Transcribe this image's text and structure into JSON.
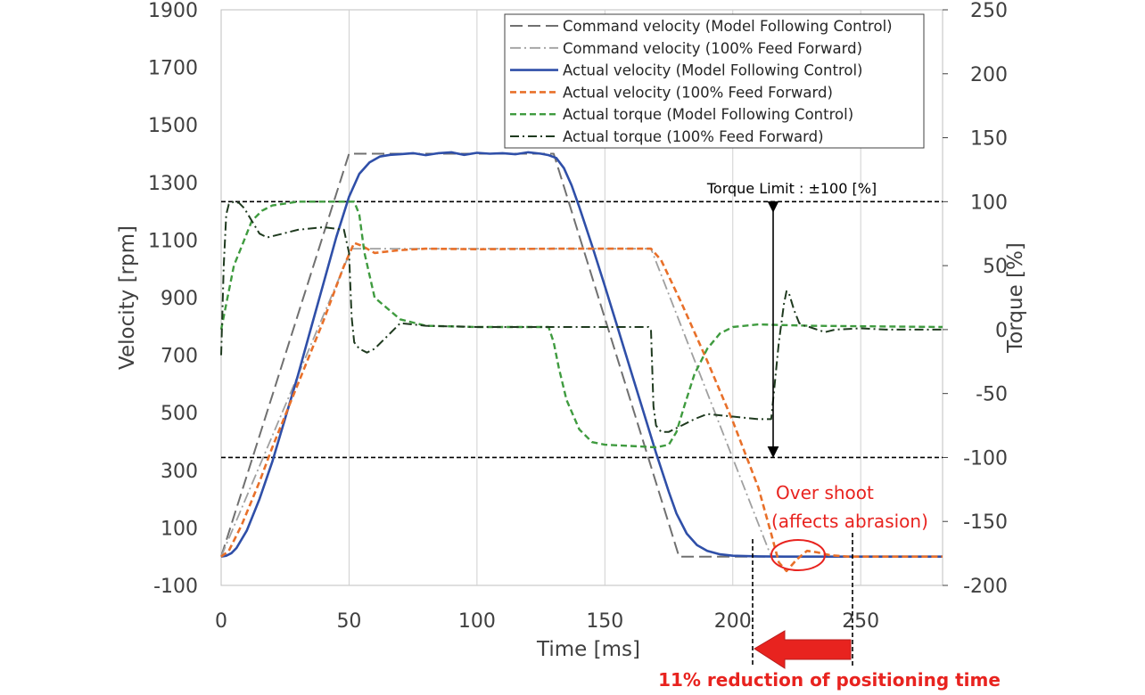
{
  "chart_data": {
    "type": "line",
    "xlabel": "Time [ms]",
    "ylabel": "Velocity [rpm]",
    "y2label": "Torque [%]",
    "xlim": [
      0,
      282
    ],
    "ylim": [
      -100,
      1900
    ],
    "y2lim": [
      -200,
      250
    ],
    "xticks": [
      "0",
      "50",
      "100",
      "150",
      "200",
      "250"
    ],
    "xtick_values": [
      0,
      50,
      100,
      150,
      200,
      250
    ],
    "yticks": [
      "-100",
      "100",
      "300",
      "500",
      "700",
      "900",
      "1100",
      "1300",
      "1500",
      "1700",
      "1900"
    ],
    "ytick_values": [
      -100,
      100,
      300,
      500,
      700,
      900,
      1100,
      1300,
      1500,
      1700,
      1900
    ],
    "y2ticks": [
      "-200",
      "-150",
      "-100",
      "-50",
      "0",
      "50",
      "100",
      "150",
      "200",
      "250"
    ],
    "y2tick_values": [
      -200,
      -150,
      -100,
      -50,
      0,
      50,
      100,
      150,
      200,
      250
    ],
    "grid": "vertical",
    "legend_position": "top-right",
    "series": [
      {
        "name": "Command velocity (Model Following Control)",
        "axis": "left",
        "color": "#707070",
        "dash": "14,6",
        "width": 2,
        "x": [
          0,
          50,
          130,
          179,
          282
        ],
        "y": [
          0,
          1400,
          1400,
          0,
          0
        ]
      },
      {
        "name": "Command velocity (100% Feed Forward)",
        "axis": "left",
        "color": "#a0a0a0",
        "dash": "12,4,2,4",
        "width": 1.8,
        "x": [
          0,
          51,
          168,
          215,
          282
        ],
        "y": [
          0,
          1070,
          1070,
          0,
          0
        ]
      },
      {
        "name": "Actual velocity (Model Following Control)",
        "axis": "left",
        "color": "#2f4fa8",
        "dash": "",
        "width": 2.6,
        "x": [
          0,
          2,
          4,
          6,
          10,
          15,
          20,
          25,
          30,
          35,
          40,
          45,
          50,
          54,
          58,
          62,
          66,
          70,
          75,
          80,
          85,
          90,
          95,
          100,
          105,
          110,
          115,
          120,
          125,
          128,
          131,
          134,
          137,
          140,
          145,
          150,
          155,
          160,
          165,
          170,
          175,
          178,
          182,
          186,
          190,
          195,
          200,
          210,
          220,
          230,
          240,
          250,
          260,
          270,
          282
        ],
        "y": [
          0,
          3,
          12,
          30,
          90,
          200,
          330,
          480,
          630,
          790,
          950,
          1110,
          1250,
          1330,
          1370,
          1390,
          1396,
          1398,
          1402,
          1395,
          1402,
          1405,
          1396,
          1403,
          1400,
          1402,
          1398,
          1405,
          1400,
          1395,
          1385,
          1350,
          1290,
          1215,
          1080,
          940,
          795,
          650,
          505,
          360,
          225,
          150,
          80,
          40,
          20,
          8,
          3,
          1,
          0,
          0,
          0,
          0,
          0,
          0,
          0
        ]
      },
      {
        "name": "Actual velocity (100% Feed Forward)",
        "axis": "left",
        "color": "#e8702a",
        "dash": "7,4",
        "width": 2.6,
        "x": [
          0,
          3,
          8,
          15,
          20,
          30,
          40,
          48,
          52,
          55,
          60,
          70,
          80,
          100,
          130,
          168,
          172,
          180,
          190,
          200,
          210,
          215,
          218,
          221,
          225,
          229,
          233,
          238,
          245,
          260,
          282
        ],
        "y": [
          0,
          20,
          110,
          260,
          380,
          600,
          820,
          1010,
          1090,
          1080,
          1055,
          1065,
          1070,
          1068,
          1070,
          1070,
          1030,
          880,
          680,
          470,
          240,
          80,
          -20,
          -50,
          -10,
          20,
          15,
          5,
          0,
          0,
          0
        ]
      },
      {
        "name": "Actual torque (Model Following Control)",
        "axis": "right",
        "color": "#3f9b3f",
        "dash": "7,4",
        "width": 2.4,
        "x": [
          0,
          2,
          5,
          8,
          12,
          16,
          20,
          30,
          40,
          48,
          52,
          54,
          56,
          60,
          70,
          80,
          100,
          120,
          128,
          130,
          132,
          135,
          140,
          145,
          150,
          160,
          170,
          175,
          178,
          181,
          185,
          190,
          195,
          200,
          210,
          230,
          282
        ],
        "y": [
          0,
          20,
          50,
          65,
          85,
          93,
          97,
          100,
          100,
          100,
          100,
          90,
          60,
          25,
          8,
          3,
          2,
          2,
          2,
          -10,
          -30,
          -55,
          -78,
          -88,
          -90,
          -91,
          -92,
          -90,
          -80,
          -60,
          -35,
          -15,
          -3,
          2,
          4,
          3,
          2
        ]
      },
      {
        "name": "Actual torque (100% Feed Forward)",
        "axis": "right",
        "color": "#1f3a1f",
        "dash": "10,4,2,4",
        "width": 2,
        "x": [
          0,
          1,
          2,
          3,
          5,
          7,
          9,
          12,
          15,
          18,
          22,
          30,
          40,
          48,
          50,
          51,
          52,
          54,
          57,
          60,
          65,
          70,
          80,
          100,
          130,
          167,
          168,
          169,
          170,
          172,
          175,
          180,
          185,
          190,
          200,
          210,
          215,
          216,
          218,
          220,
          221,
          222,
          224,
          226,
          228,
          230,
          233,
          236,
          240,
          250,
          260,
          282
        ],
        "y": [
          -20,
          50,
          90,
          98,
          100,
          99,
          95,
          85,
          75,
          72,
          74,
          78,
          80,
          78,
          60,
          10,
          -10,
          -15,
          -18,
          -15,
          -5,
          5,
          3,
          2,
          2,
          2,
          0,
          -60,
          -75,
          -80,
          -80,
          -75,
          -70,
          -66,
          -68,
          -70,
          -70,
          -50,
          -10,
          20,
          30,
          28,
          15,
          5,
          3,
          2,
          0,
          -2,
          0,
          1,
          0,
          0
        ]
      }
    ],
    "torque_limit_label": "Torque Limit : ±100 [%]",
    "torque_limit_values": [
      100,
      -100
    ],
    "overshoot_label_line1": "Over shoot",
    "overshoot_label_line2": "(affects abrasion)",
    "reduction_label": "11% reduction of positioning time",
    "colors": {
      "annotation_red": "#e8231f",
      "limit_line": "#000000",
      "grid": "#d0d0d0"
    }
  }
}
